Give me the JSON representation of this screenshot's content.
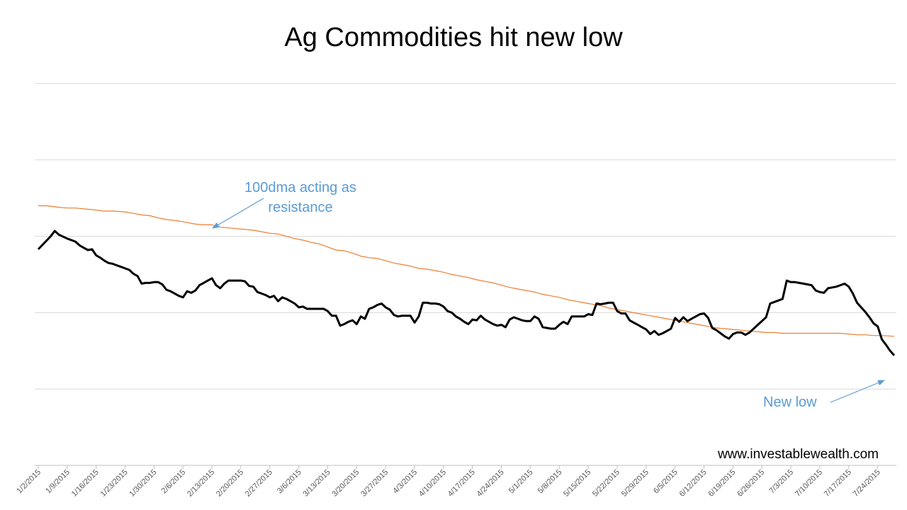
{
  "chart_data": {
    "type": "line",
    "title": "Ag Commodities hit new low",
    "xlabel": "",
    "ylabel": "",
    "x_ticks": [
      "1/2/2015",
      "1/9/2015",
      "1/16/2015",
      "1/23/2015",
      "1/30/2015",
      "2/6/2015",
      "2/13/2015",
      "2/20/2015",
      "2/27/2015",
      "3/6/2015",
      "3/13/2015",
      "3/20/2015",
      "3/27/2015",
      "4/3/2015",
      "4/10/2015",
      "4/17/2015",
      "4/24/2015",
      "5/1/2015",
      "5/8/2015",
      "5/15/2015",
      "5/22/2015",
      "5/29/2015",
      "6/5/2015",
      "6/12/2015",
      "6/19/2015",
      "6/26/2015",
      "7/3/2015",
      "7/10/2015",
      "7/17/2015",
      "7/24/2015"
    ],
    "x_range_days": [
      0,
      207
    ],
    "ylim": [
      0,
      5
    ],
    "y_gridlines": [
      1,
      2,
      3,
      4,
      5
    ],
    "grid": true,
    "series": [
      {
        "name": "Ag Commodities",
        "color": "#000000",
        "points": [
          [
            0,
            2.83
          ],
          [
            3,
            3.0
          ],
          [
            4,
            3.07
          ],
          [
            5,
            3.02
          ],
          [
            7,
            2.97
          ],
          [
            9,
            2.93
          ],
          [
            10,
            2.88
          ],
          [
            11,
            2.85
          ],
          [
            12,
            2.82
          ],
          [
            13,
            2.83
          ],
          [
            14,
            2.75
          ],
          [
            15,
            2.72
          ],
          [
            16,
            2.68
          ],
          [
            17,
            2.65
          ],
          [
            18,
            2.64
          ],
          [
            19,
            2.62
          ],
          [
            20,
            2.6
          ],
          [
            21,
            2.58
          ],
          [
            22,
            2.56
          ],
          [
            23,
            2.51
          ],
          [
            24,
            2.48
          ],
          [
            25,
            2.38
          ],
          [
            26,
            2.39
          ],
          [
            27,
            2.39
          ],
          [
            28,
            2.4
          ],
          [
            29,
            2.4
          ],
          [
            30,
            2.37
          ],
          [
            31,
            2.3
          ],
          [
            32,
            2.28
          ],
          [
            33,
            2.25
          ],
          [
            34,
            2.22
          ],
          [
            35,
            2.2
          ],
          [
            36,
            2.28
          ],
          [
            37,
            2.26
          ],
          [
            38,
            2.29
          ],
          [
            39,
            2.36
          ],
          [
            40,
            2.39
          ],
          [
            41,
            2.42
          ],
          [
            42,
            2.45
          ],
          [
            43,
            2.36
          ],
          [
            44,
            2.32
          ],
          [
            45,
            2.38
          ],
          [
            46,
            2.42
          ],
          [
            47,
            2.42
          ],
          [
            48,
            2.42
          ],
          [
            49,
            2.42
          ],
          [
            50,
            2.41
          ],
          [
            51,
            2.35
          ],
          [
            52,
            2.34
          ],
          [
            53,
            2.27
          ],
          [
            54,
            2.25
          ],
          [
            55,
            2.23
          ],
          [
            56,
            2.2
          ],
          [
            57,
            2.22
          ],
          [
            58,
            2.15
          ],
          [
            59,
            2.2
          ],
          [
            60,
            2.18
          ],
          [
            61,
            2.15
          ],
          [
            62,
            2.12
          ],
          [
            63,
            2.07
          ],
          [
            64,
            2.08
          ],
          [
            65,
            2.05
          ],
          [
            66,
            2.05
          ],
          [
            67,
            2.05
          ],
          [
            68,
            2.05
          ],
          [
            69,
            2.05
          ],
          [
            70,
            2.02
          ],
          [
            71,
            1.96
          ],
          [
            72,
            1.96
          ],
          [
            73,
            1.83
          ],
          [
            74,
            1.85
          ],
          [
            75,
            1.88
          ],
          [
            76,
            1.9
          ],
          [
            77,
            1.85
          ],
          [
            78,
            1.95
          ],
          [
            79,
            1.92
          ],
          [
            80,
            2.05
          ],
          [
            81,
            2.07
          ],
          [
            82,
            2.1
          ],
          [
            83,
            2.12
          ],
          [
            84,
            2.07
          ],
          [
            85,
            2.04
          ],
          [
            86,
            1.97
          ],
          [
            87,
            1.95
          ],
          [
            88,
            1.96
          ],
          [
            89,
            1.96
          ],
          [
            90,
            1.96
          ],
          [
            91,
            1.87
          ],
          [
            92,
            1.95
          ],
          [
            93,
            2.13
          ],
          [
            94,
            2.13
          ],
          [
            95,
            2.12
          ],
          [
            96,
            2.12
          ],
          [
            97,
            2.11
          ],
          [
            98,
            2.08
          ],
          [
            99,
            2.02
          ],
          [
            100,
            2.0
          ],
          [
            101,
            1.95
          ],
          [
            102,
            1.92
          ],
          [
            103,
            1.88
          ],
          [
            104,
            1.85
          ],
          [
            105,
            1.91
          ],
          [
            106,
            1.9
          ],
          [
            107,
            1.96
          ],
          [
            108,
            1.91
          ],
          [
            109,
            1.88
          ],
          [
            110,
            1.85
          ],
          [
            111,
            1.83
          ],
          [
            112,
            1.84
          ],
          [
            113,
            1.81
          ],
          [
            114,
            1.91
          ],
          [
            115,
            1.94
          ],
          [
            116,
            1.92
          ],
          [
            117,
            1.9
          ],
          [
            118,
            1.89
          ],
          [
            119,
            1.89
          ],
          [
            120,
            1.95
          ],
          [
            121,
            1.92
          ],
          [
            122,
            1.81
          ],
          [
            123,
            1.8
          ],
          [
            124,
            1.79
          ],
          [
            125,
            1.79
          ],
          [
            126,
            1.84
          ],
          [
            127,
            1.88
          ],
          [
            128,
            1.85
          ],
          [
            129,
            1.95
          ],
          [
            130,
            1.95
          ],
          [
            131,
            1.95
          ],
          [
            132,
            1.95
          ],
          [
            133,
            1.98
          ],
          [
            134,
            1.97
          ],
          [
            135,
            2.12
          ],
          [
            136,
            2.11
          ],
          [
            137,
            2.12
          ],
          [
            138,
            2.13
          ],
          [
            139,
            2.13
          ],
          [
            140,
            2.02
          ],
          [
            141,
            1.99
          ],
          [
            142,
            1.99
          ],
          [
            143,
            1.9
          ],
          [
            144,
            1.87
          ],
          [
            145,
            1.84
          ],
          [
            146,
            1.81
          ],
          [
            147,
            1.78
          ],
          [
            148,
            1.72
          ],
          [
            149,
            1.76
          ],
          [
            150,
            1.71
          ],
          [
            151,
            1.73
          ],
          [
            152,
            1.76
          ],
          [
            153,
            1.79
          ],
          [
            154,
            1.93
          ],
          [
            155,
            1.88
          ],
          [
            156,
            1.94
          ],
          [
            157,
            1.89
          ],
          [
            158,
            1.92
          ],
          [
            159,
            1.95
          ],
          [
            160,
            1.98
          ],
          [
            161,
            1.99
          ],
          [
            162,
            1.93
          ],
          [
            163,
            1.8
          ],
          [
            164,
            1.77
          ],
          [
            165,
            1.73
          ],
          [
            166,
            1.69
          ],
          [
            167,
            1.66
          ],
          [
            168,
            1.72
          ],
          [
            169,
            1.74
          ],
          [
            170,
            1.74
          ],
          [
            171,
            1.71
          ],
          [
            172,
            1.74
          ],
          [
            173,
            1.79
          ],
          [
            174,
            1.84
          ],
          [
            175,
            1.89
          ],
          [
            176,
            1.94
          ],
          [
            177,
            2.12
          ],
          [
            178,
            2.14
          ],
          [
            179,
            2.16
          ],
          [
            180,
            2.18
          ],
          [
            181,
            2.42
          ],
          [
            182,
            2.4
          ],
          [
            183,
            2.4
          ],
          [
            184,
            2.39
          ],
          [
            185,
            2.38
          ],
          [
            186,
            2.37
          ],
          [
            187,
            2.36
          ],
          [
            188,
            2.29
          ],
          [
            189,
            2.27
          ],
          [
            190,
            2.26
          ],
          [
            191,
            2.32
          ],
          [
            192,
            2.33
          ],
          [
            193,
            2.34
          ],
          [
            194,
            2.36
          ],
          [
            195,
            2.38
          ],
          [
            196,
            2.34
          ],
          [
            197,
            2.25
          ],
          [
            198,
            2.13
          ],
          [
            199,
            2.07
          ],
          [
            200,
            2.01
          ],
          [
            201,
            1.94
          ],
          [
            202,
            1.86
          ],
          [
            203,
            1.82
          ],
          [
            204,
            1.65
          ],
          [
            205,
            1.58
          ],
          [
            206,
            1.5
          ],
          [
            207,
            1.44
          ]
        ]
      },
      {
        "name": "100dma",
        "color": "#ed7d31",
        "points": [
          [
            0,
            3.4
          ],
          [
            2,
            3.4
          ],
          [
            5,
            3.38
          ],
          [
            7,
            3.37
          ],
          [
            9,
            3.37
          ],
          [
            13,
            3.35
          ],
          [
            16,
            3.33
          ],
          [
            18,
            3.33
          ],
          [
            21,
            3.32
          ],
          [
            23,
            3.3
          ],
          [
            25,
            3.28
          ],
          [
            27,
            3.27
          ],
          [
            29,
            3.24
          ],
          [
            31,
            3.22
          ],
          [
            34,
            3.2
          ],
          [
            36,
            3.18
          ],
          [
            38,
            3.16
          ],
          [
            40,
            3.15
          ],
          [
            42,
            3.15
          ],
          [
            44,
            3.12
          ],
          [
            48,
            3.1
          ],
          [
            50,
            3.09
          ],
          [
            52,
            3.08
          ],
          [
            54,
            3.06
          ],
          [
            56,
            3.04
          ],
          [
            58,
            3.03
          ],
          [
            60,
            3.0
          ],
          [
            62,
            2.97
          ],
          [
            64,
            2.95
          ],
          [
            66,
            2.92
          ],
          [
            68,
            2.9
          ],
          [
            70,
            2.86
          ],
          [
            72,
            2.82
          ],
          [
            74,
            2.81
          ],
          [
            76,
            2.78
          ],
          [
            78,
            2.74
          ],
          [
            80,
            2.72
          ],
          [
            82,
            2.71
          ],
          [
            84,
            2.68
          ],
          [
            86,
            2.65
          ],
          [
            88,
            2.63
          ],
          [
            90,
            2.61
          ],
          [
            92,
            2.58
          ],
          [
            94,
            2.57
          ],
          [
            96,
            2.55
          ],
          [
            98,
            2.53
          ],
          [
            100,
            2.5
          ],
          [
            102,
            2.48
          ],
          [
            104,
            2.46
          ],
          [
            106,
            2.43
          ],
          [
            108,
            2.41
          ],
          [
            110,
            2.39
          ],
          [
            112,
            2.36
          ],
          [
            114,
            2.33
          ],
          [
            116,
            2.31
          ],
          [
            118,
            2.29
          ],
          [
            120,
            2.27
          ],
          [
            122,
            2.24
          ],
          [
            124,
            2.22
          ],
          [
            126,
            2.2
          ],
          [
            128,
            2.17
          ],
          [
            130,
            2.15
          ],
          [
            132,
            2.13
          ],
          [
            134,
            2.11
          ],
          [
            136,
            2.09
          ],
          [
            138,
            2.06
          ],
          [
            140,
            2.04
          ],
          [
            142,
            2.02
          ],
          [
            144,
            2.0
          ],
          [
            146,
            1.98
          ],
          [
            148,
            1.96
          ],
          [
            150,
            1.94
          ],
          [
            152,
            1.92
          ],
          [
            154,
            1.9
          ],
          [
            156,
            1.88
          ],
          [
            158,
            1.86
          ],
          [
            160,
            1.84
          ],
          [
            162,
            1.82
          ],
          [
            164,
            1.8
          ],
          [
            166,
            1.79
          ],
          [
            168,
            1.78
          ],
          [
            170,
            1.77
          ],
          [
            172,
            1.76
          ],
          [
            174,
            1.75
          ],
          [
            176,
            1.74
          ],
          [
            178,
            1.74
          ],
          [
            180,
            1.73
          ],
          [
            182,
            1.73
          ],
          [
            184,
            1.73
          ],
          [
            186,
            1.73
          ],
          [
            188,
            1.73
          ],
          [
            190,
            1.73
          ],
          [
            192,
            1.73
          ],
          [
            194,
            1.73
          ],
          [
            196,
            1.72
          ],
          [
            198,
            1.71
          ],
          [
            200,
            1.71
          ],
          [
            202,
            1.7
          ],
          [
            204,
            1.7
          ],
          [
            207,
            1.69
          ]
        ]
      }
    ],
    "annotations": [
      {
        "text_lines": [
          "100dma acting as",
          "resistance"
        ],
        "arrow_to": [
          40,
          3.15
        ]
      },
      {
        "text": "New low",
        "arrow_to": [
          206,
          1.52
        ]
      }
    ],
    "watermark": "www.investablewealth.com"
  }
}
